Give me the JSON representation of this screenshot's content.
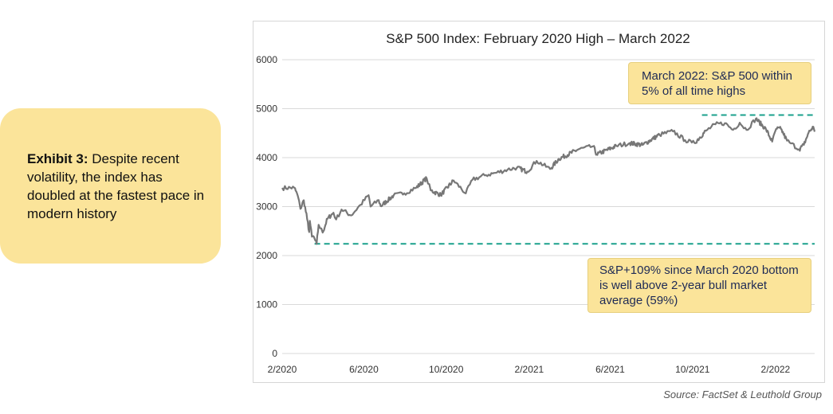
{
  "exhibit": {
    "label": "Exhibit 3:",
    "text": " Despite recent volatility, the index has doubled at the fastest pace in modern history"
  },
  "source": "Source: FactSet & Leuthold Group",
  "callouts": {
    "top": "March 2022: S&P 500 within 5% of all time highs",
    "bottom": "S&P+109% since March 2020 bottom is well above 2-year bull market average (59%)"
  },
  "colors": {
    "line": "#777777",
    "reference": "#1aa08c",
    "callout": "#fbe49a",
    "grid": "#d9d9d9"
  },
  "chart_data": {
    "type": "line",
    "title": "S&P 500 Index: February 2020 High – March 2022",
    "ylim": [
      0,
      6000
    ],
    "yticks": [
      0,
      1000,
      2000,
      3000,
      4000,
      5000,
      6000
    ],
    "xlim": [
      "2020-02-01",
      "2022-03-31"
    ],
    "xticks": [
      "2/2020",
      "6/2020",
      "10/2020",
      "2/2021",
      "6/2021",
      "10/2021",
      "2/2022"
    ],
    "xtick_dates": [
      "2020-02-01",
      "2020-06-01",
      "2020-10-01",
      "2021-02-01",
      "2021-06-01",
      "2021-10-01",
      "2022-02-01"
    ],
    "grid": true,
    "series": [
      {
        "points": [
          [
            "2020-02-01",
            3380
          ],
          [
            "2020-02-19",
            3386
          ],
          [
            "2020-02-24",
            3225
          ],
          [
            "2020-02-28",
            2954
          ],
          [
            "2020-03-04",
            3130
          ],
          [
            "2020-03-09",
            2746
          ],
          [
            "2020-03-12",
            2480
          ],
          [
            "2020-03-13",
            2711
          ],
          [
            "2020-03-16",
            2386
          ],
          [
            "2020-03-18",
            2398
          ],
          [
            "2020-03-23",
            2237
          ],
          [
            "2020-03-26",
            2630
          ],
          [
            "2020-04-01",
            2470
          ],
          [
            "2020-04-08",
            2750
          ],
          [
            "2020-04-17",
            2875
          ],
          [
            "2020-04-21",
            2737
          ],
          [
            "2020-04-29",
            2940
          ],
          [
            "2020-05-13",
            2820
          ],
          [
            "2020-05-27",
            3036
          ],
          [
            "2020-06-08",
            3232
          ],
          [
            "2020-06-11",
            3002
          ],
          [
            "2020-06-23",
            3131
          ],
          [
            "2020-06-26",
            3009
          ],
          [
            "2020-07-15",
            3227
          ],
          [
            "2020-07-31",
            3271
          ],
          [
            "2020-08-18",
            3390
          ],
          [
            "2020-09-02",
            3580
          ],
          [
            "2020-09-08",
            3332
          ],
          [
            "2020-09-23",
            3237
          ],
          [
            "2020-10-12",
            3534
          ],
          [
            "2020-10-30",
            3270
          ],
          [
            "2020-11-09",
            3550
          ],
          [
            "2020-11-27",
            3638
          ],
          [
            "2020-12-15",
            3695
          ],
          [
            "2020-12-31",
            3756
          ],
          [
            "2021-01-14",
            3796
          ],
          [
            "2021-01-29",
            3714
          ],
          [
            "2021-02-12",
            3934
          ],
          [
            "2021-03-04",
            3768
          ],
          [
            "2021-03-17",
            3974
          ],
          [
            "2021-04-15",
            4170
          ],
          [
            "2021-05-07",
            4232
          ],
          [
            "2021-05-12",
            4063
          ],
          [
            "2021-06-10",
            4239
          ],
          [
            "2021-06-30",
            4297
          ],
          [
            "2021-07-19",
            4258
          ],
          [
            "2021-08-13",
            4468
          ],
          [
            "2021-09-02",
            4537
          ],
          [
            "2021-09-20",
            4358
          ],
          [
            "2021-09-30",
            4307
          ],
          [
            "2021-10-04",
            4300
          ],
          [
            "2021-10-21",
            4549
          ],
          [
            "2021-11-04",
            4680
          ],
          [
            "2021-11-18",
            4704
          ],
          [
            "2021-11-30",
            4567
          ],
          [
            "2021-12-10",
            4712
          ],
          [
            "2021-12-20",
            4568
          ],
          [
            "2022-01-03",
            4796
          ],
          [
            "2022-01-18",
            4577
          ],
          [
            "2022-01-27",
            4327
          ],
          [
            "2022-02-02",
            4589
          ],
          [
            "2022-02-09",
            4587
          ],
          [
            "2022-02-18",
            4348
          ],
          [
            "2022-02-24",
            4289
          ],
          [
            "2022-03-08",
            4170
          ],
          [
            "2022-03-15",
            4262
          ],
          [
            "2022-03-22",
            4511
          ],
          [
            "2022-03-29",
            4631
          ],
          [
            "2022-03-31",
            4530
          ]
        ]
      }
    ],
    "reference_lines": [
      {
        "y": 4870,
        "x_start": "2021-10-15",
        "style": "dashed"
      },
      {
        "y": 2240,
        "x_start": "2020-03-20",
        "style": "dashed"
      }
    ]
  }
}
